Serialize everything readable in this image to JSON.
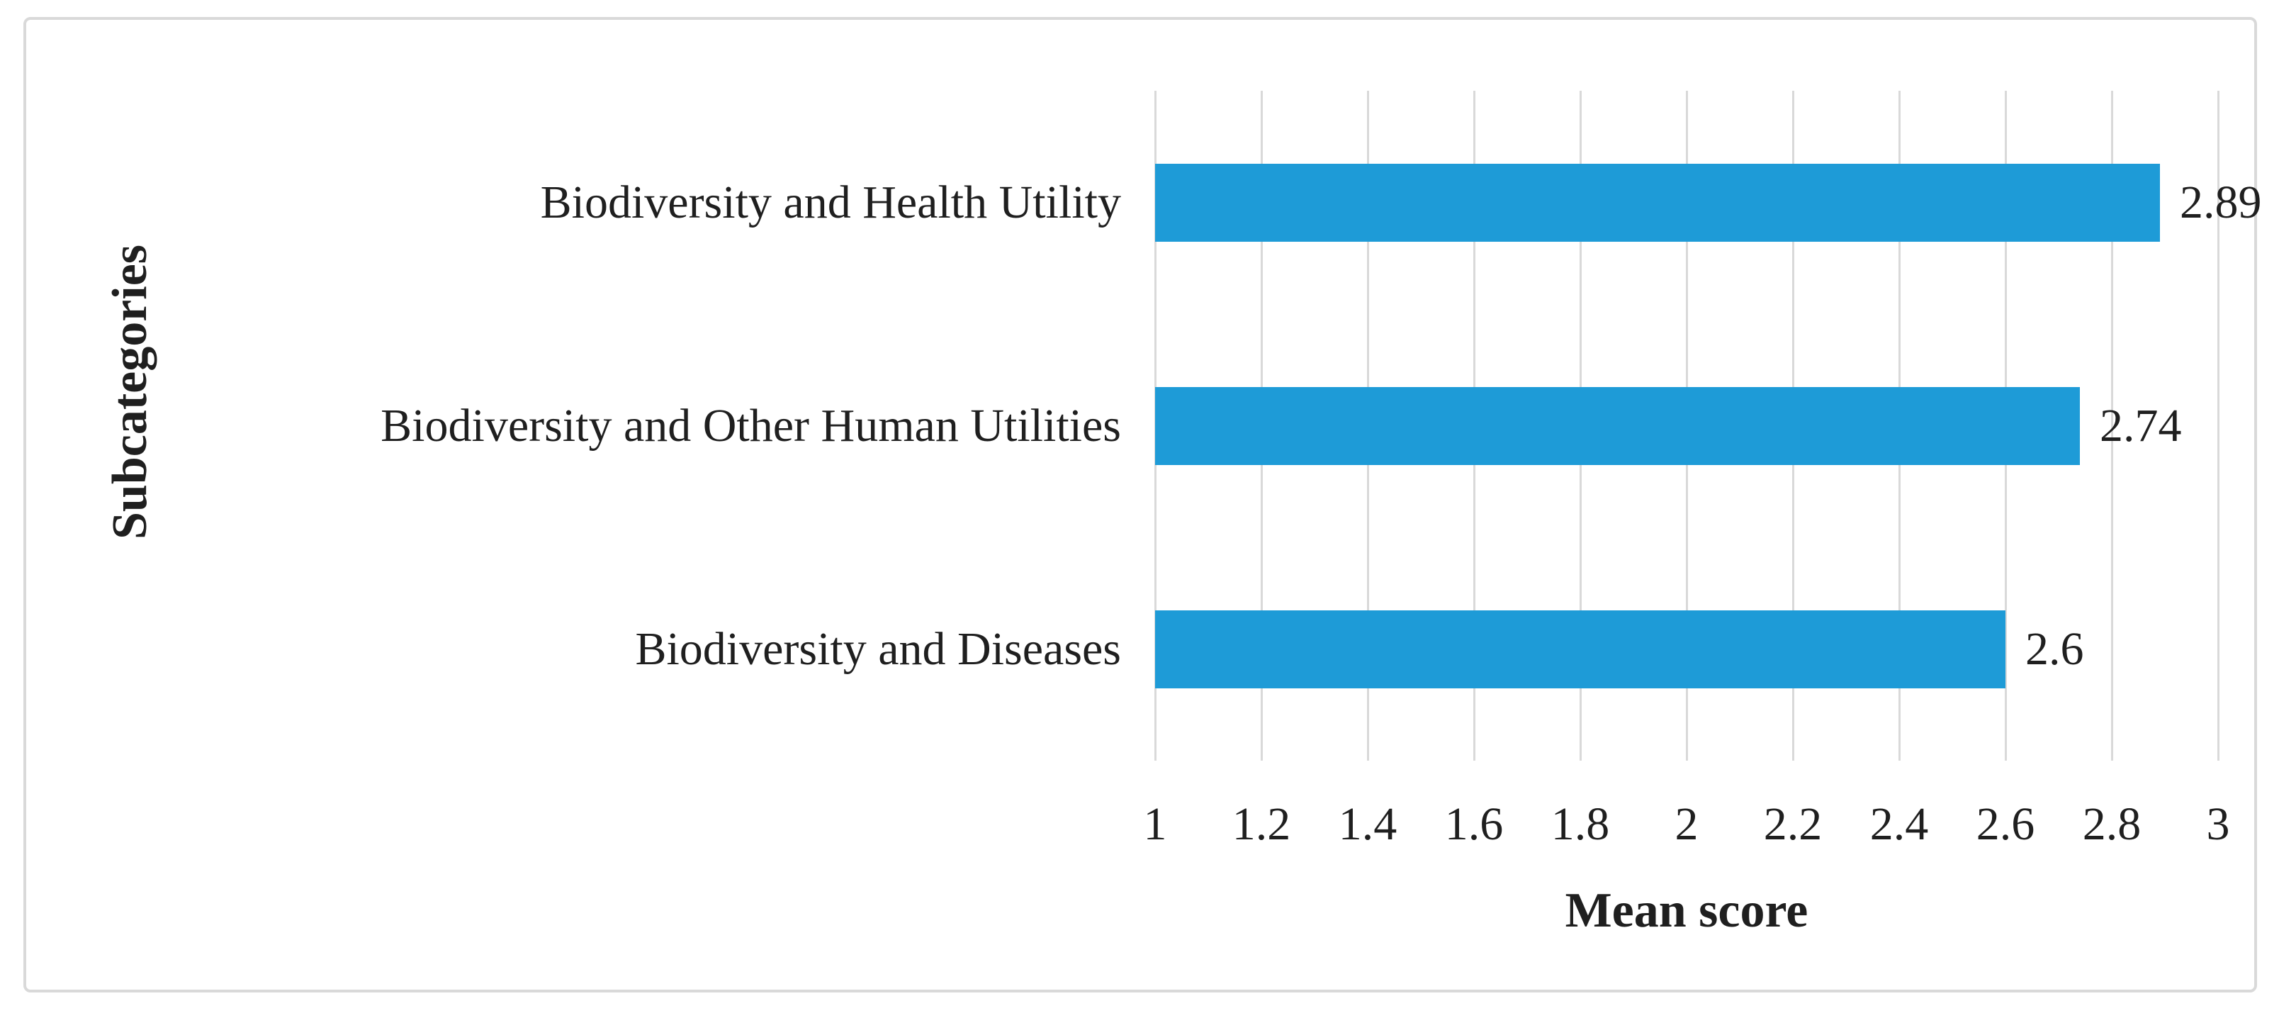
{
  "chart_data": {
    "type": "bar",
    "orientation": "horizontal",
    "categories": [
      "Biodiversity and Health Utility",
      "Biodiversity and Other Human Utilities",
      "Biodiversity and Diseases"
    ],
    "values": [
      2.89,
      2.74,
      2.6
    ],
    "value_labels": [
      "2.89",
      "2.74",
      "2.6"
    ],
    "xlabel": "Mean score",
    "ylabel": "Subcategories",
    "xlim": [
      1,
      3
    ],
    "x_ticks": [
      "1",
      "1.2",
      "1.4",
      "1.6",
      "1.8",
      "2",
      "2.2",
      "2.4",
      "2.6",
      "2.8",
      "3"
    ],
    "grid": "vertical-gridlines-on",
    "legend": "none",
    "colors": {
      "bar": "#1e9bd7",
      "gridline": "#d9d9d9",
      "frame_border": "#d9d9d9",
      "text": "#1f1f1f"
    }
  }
}
